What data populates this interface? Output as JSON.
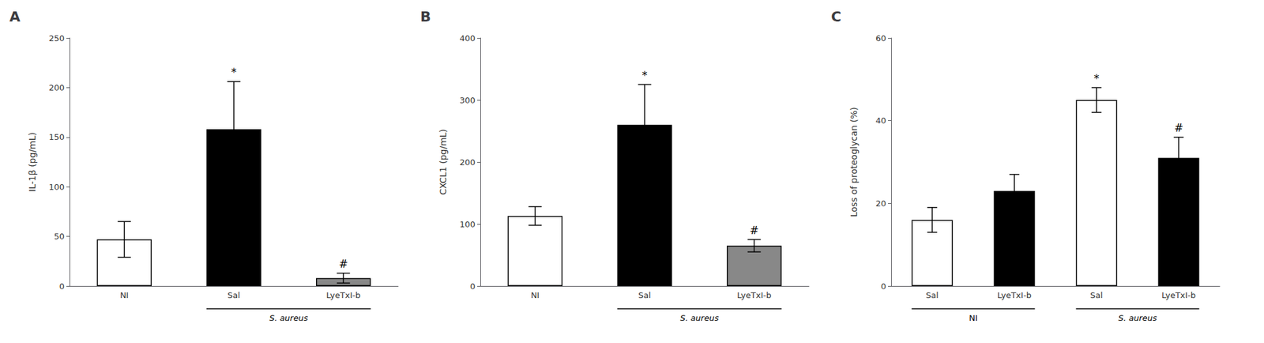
{
  "chart_data": [
    {
      "type": "bar",
      "title": "A",
      "categories": [
        "NI",
        "Sal",
        "LyeTxI-b"
      ],
      "values": [
        47,
        158,
        8
      ],
      "errors": [
        18,
        48,
        5
      ],
      "colors": [
        "#ffffff",
        "#000000",
        "#888888"
      ],
      "ylabel": "IL-1β (pg/mL)",
      "ylim": [
        0,
        250
      ],
      "yticks": [
        0,
        50,
        100,
        150,
        200,
        250
      ],
      "annotations": [
        null,
        "*",
        "#"
      ],
      "groups": [
        null,
        "S. aureus",
        "S. aureus"
      ],
      "grid": false
    },
    {
      "type": "bar",
      "title": "B",
      "categories": [
        "NI",
        "Sal",
        "LyeTxI-b"
      ],
      "values": [
        113,
        260,
        65
      ],
      "errors": [
        15,
        65,
        10
      ],
      "colors": [
        "#ffffff",
        "#000000",
        "#888888"
      ],
      "ylabel": "CXCL1 (pg/mL)",
      "ylim": [
        0,
        400
      ],
      "yticks": [
        0,
        100,
        200,
        300,
        400
      ],
      "annotations": [
        null,
        "*",
        "#"
      ],
      "groups": [
        null,
        "S. aureus",
        "S. aureus"
      ],
      "grid": false
    },
    {
      "type": "bar",
      "title": "C",
      "categories": [
        "Sal",
        "LyeTxI-b",
        "Sal",
        "LyeTxI-b"
      ],
      "values": [
        16,
        23,
        45,
        31
      ],
      "errors": [
        3,
        4,
        3,
        5
      ],
      "colors": [
        "#ffffff",
        "#000000",
        "#ffffff",
        "#000000"
      ],
      "ylabel": "Loss of proteoglycan (%)",
      "ylim": [
        0,
        60
      ],
      "yticks": [
        0,
        20,
        40,
        60
      ],
      "annotations": [
        null,
        null,
        "*",
        "#"
      ],
      "groups": [
        "NI",
        "NI",
        "S. aureus",
        "S. aureus"
      ],
      "grid": false
    }
  ]
}
